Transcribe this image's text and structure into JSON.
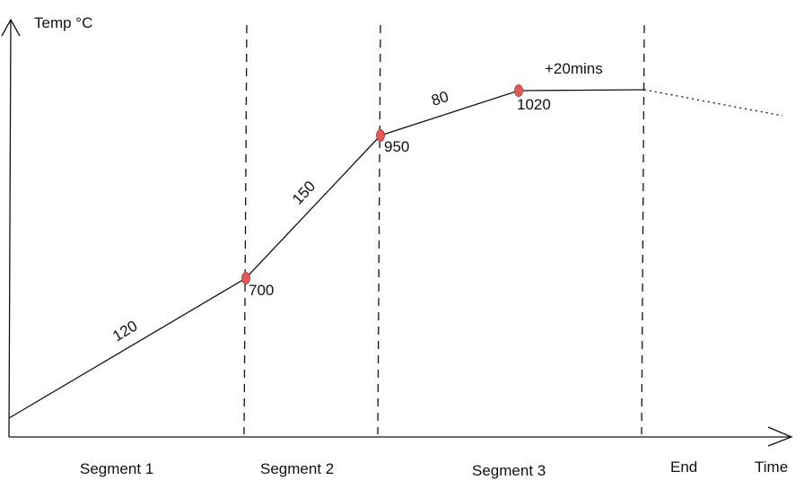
{
  "axes": {
    "y_label": "Temp °C",
    "x_label": "Time"
  },
  "segments": [
    "Segment 1",
    "Segment 2",
    "Segment 3",
    "End"
  ],
  "rates": [
    "120",
    "150",
    "80"
  ],
  "setpoints": [
    "700",
    "950",
    "1020"
  ],
  "hold": "+20mins",
  "colors": {
    "line": "#111111",
    "setpoint_marker": "#e05a5a"
  }
}
